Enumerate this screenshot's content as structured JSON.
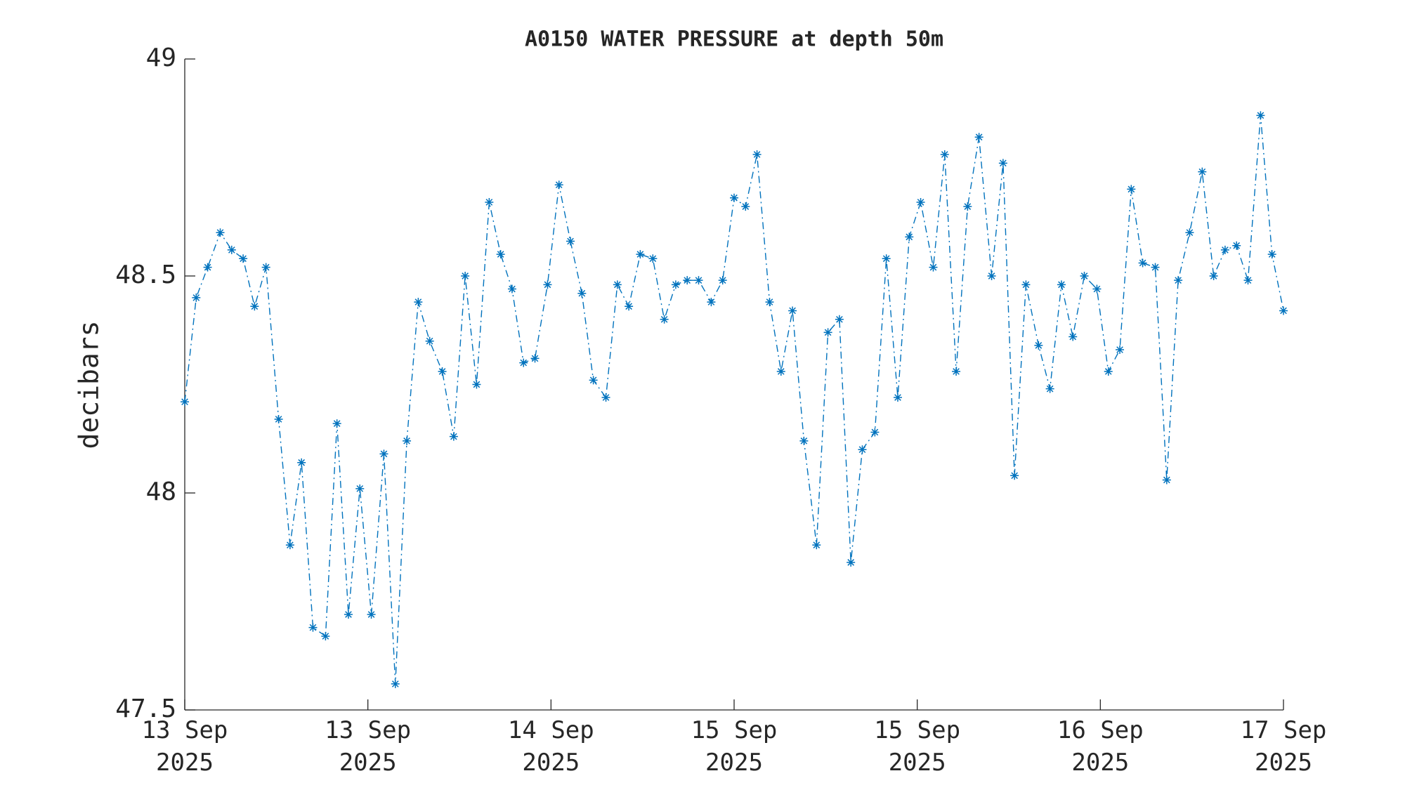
{
  "chart_data": {
    "type": "line",
    "title": "A0150 WATER PRESSURE at depth 50m",
    "ylabel": "decibars",
    "color": "#0072bd",
    "marker": "asterisk",
    "line_style": "dash-dot",
    "grid": false,
    "x": [
      0,
      1.0,
      2.0,
      3.1,
      4.1,
      5.1,
      6.1,
      7.1,
      8.2,
      9.2,
      10.2,
      11.2,
      12.3,
      13.3,
      14.3,
      15.3,
      16.3,
      17.4,
      18.4,
      19.4,
      20.4,
      21.4,
      22.5,
      23.5,
      24.5,
      25.5,
      26.6,
      27.6,
      28.6,
      29.6,
      30.6,
      31.7,
      32.7,
      33.7,
      34.7,
      35.7,
      36.8,
      37.8,
      38.8,
      39.8,
      40.9,
      41.9,
      42.9,
      43.9,
      44.9,
      46.0,
      47.0,
      48.0,
      49.0,
      50.0,
      51.1,
      52.1,
      53.1,
      54.1,
      55.2,
      56.2,
      57.2,
      58.2,
      59.2,
      60.3,
      61.3,
      62.3,
      63.3,
      64.3,
      65.4,
      66.4,
      67.4,
      68.4,
      69.4,
      70.5,
      71.5,
      72.5,
      73.5,
      74.6,
      75.6,
      76.6,
      77.6,
      78.6,
      79.7,
      80.7,
      81.7,
      82.7,
      83.7,
      84.8,
      85.8,
      86.8,
      87.8,
      88.9,
      89.9,
      90.9,
      91.9,
      92.9,
      94.0,
      95.0,
      96.0
    ],
    "values": [
      48.21,
      48.45,
      48.52,
      48.6,
      48.56,
      48.54,
      48.43,
      48.52,
      48.17,
      47.88,
      48.07,
      47.69,
      47.67,
      48.16,
      47.72,
      48.01,
      47.72,
      48.09,
      47.56,
      48.12,
      48.44,
      48.35,
      48.28,
      48.13,
      48.5,
      48.25,
      48.67,
      48.55,
      48.47,
      48.3,
      48.31,
      48.48,
      48.71,
      48.58,
      48.46,
      48.26,
      48.22,
      48.48,
      48.43,
      48.55,
      48.54,
      48.4,
      48.48,
      48.49,
      48.49,
      48.44,
      48.49,
      48.68,
      48.66,
      48.78,
      48.44,
      48.28,
      48.42,
      48.12,
      47.88,
      48.37,
      48.4,
      47.84,
      48.1,
      48.14,
      48.54,
      48.22,
      48.59,
      48.67,
      48.52,
      48.78,
      48.28,
      48.66,
      48.82,
      48.5,
      48.76,
      48.04,
      48.48,
      48.34,
      48.24,
      48.48,
      48.36,
      48.5,
      48.47,
      48.28,
      48.33,
      48.7,
      48.53,
      48.52,
      48.03,
      48.49,
      48.6,
      48.74,
      48.5,
      48.56,
      48.57,
      48.49,
      48.87,
      48.55,
      48.42
    ],
    "xlim": [
      0,
      96
    ],
    "xticks": [
      {
        "value": 0,
        "label": "13 Sep\n2025"
      },
      {
        "value": 16,
        "label": "13 Sep\n2025"
      },
      {
        "value": 32,
        "label": "14 Sep\n2025"
      },
      {
        "value": 48,
        "label": "15 Sep\n2025"
      },
      {
        "value": 64,
        "label": "15 Sep\n2025"
      },
      {
        "value": 80,
        "label": "16 Sep\n2025"
      },
      {
        "value": 96,
        "label": "17 Sep\n2025"
      }
    ],
    "ylim": [
      47.5,
      49
    ],
    "yticks": [
      47.5,
      48,
      48.5,
      49
    ]
  }
}
